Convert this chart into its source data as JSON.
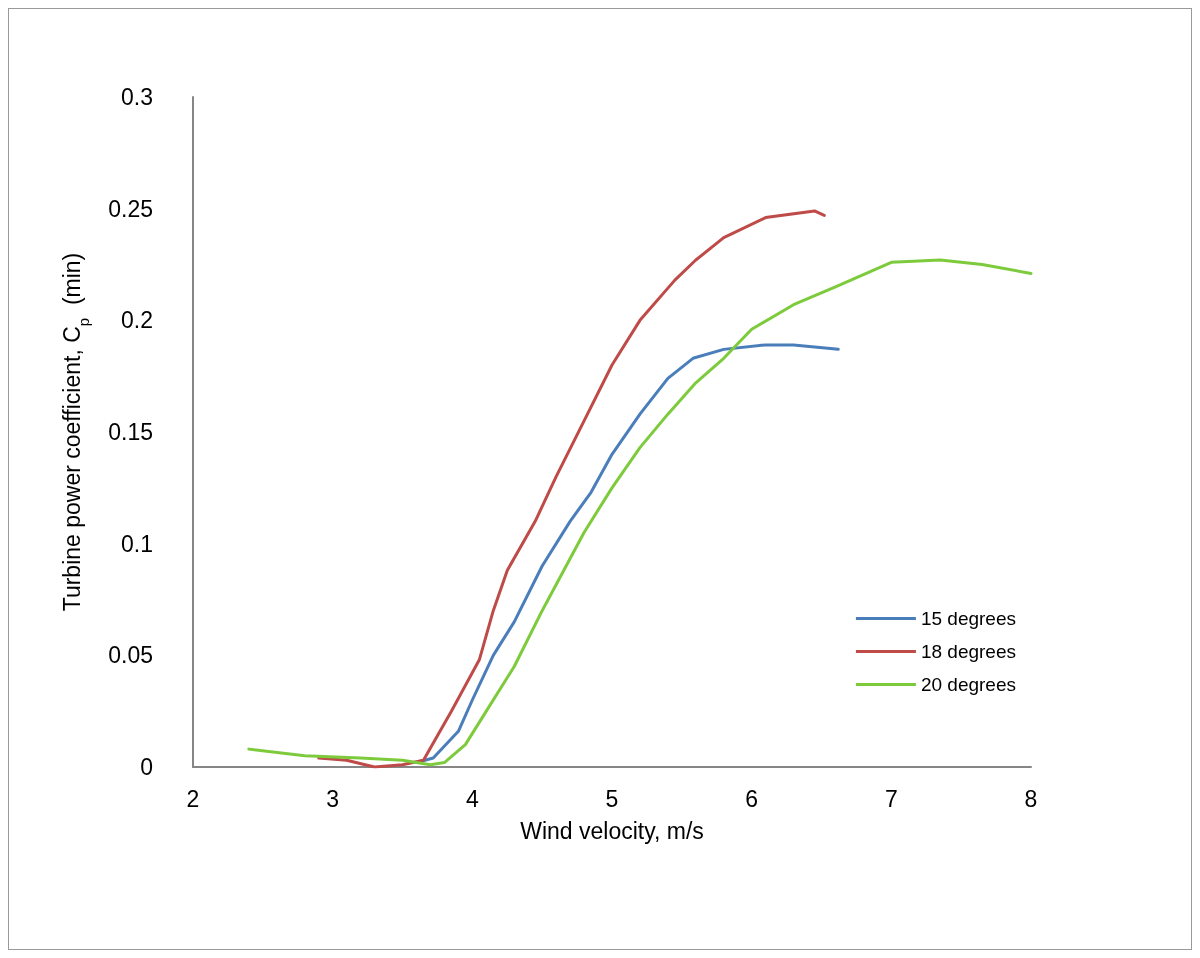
{
  "chart_data": {
    "type": "line",
    "xlabel": "Wind velocity, m/s",
    "ylabel": "Turbine power coefficient, C$_{p}$  (min)",
    "xlim": [
      2,
      8
    ],
    "xticks": [
      2,
      3,
      4,
      5,
      6,
      7,
      8
    ],
    "ylim": [
      0,
      0.3
    ],
    "yticks": [
      0,
      0.05,
      0.1,
      0.15,
      0.2,
      0.25,
      0.3
    ],
    "grid": false,
    "legend": "bottom right",
    "marker": "none",
    "line_style": "solid",
    "series": [
      {
        "name": "15 degrees",
        "color": "#4a7ebb",
        "x": [
          3.6,
          3.72,
          3.9,
          4.0,
          4.15,
          4.3,
          4.5,
          4.7,
          4.85,
          5.0,
          5.2,
          5.4,
          5.58,
          5.8,
          6.1,
          6.3,
          6.62
        ],
        "values": [
          0.002,
          0.004,
          0.016,
          0.03,
          0.05,
          0.065,
          0.09,
          0.11,
          0.123,
          0.14,
          0.158,
          0.174,
          0.183,
          0.187,
          0.189,
          0.189,
          0.187
        ]
      },
      {
        "name": "18 degrees",
        "color": "#be4b48",
        "x": [
          2.9,
          3.1,
          3.3,
          3.5,
          3.65,
          3.85,
          4.05,
          4.15,
          4.25,
          4.45,
          4.6,
          4.8,
          5.0,
          5.2,
          5.45,
          5.6,
          5.8,
          6.1,
          6.45,
          6.52
        ],
        "values": [
          0.004,
          0.003,
          0.0,
          0.001,
          0.003,
          0.025,
          0.048,
          0.07,
          0.088,
          0.11,
          0.13,
          0.155,
          0.18,
          0.2,
          0.218,
          0.227,
          0.237,
          0.246,
          0.249,
          0.247
        ]
      },
      {
        "name": "20 degrees",
        "color": "#7dcb3c",
        "x": [
          2.4,
          2.8,
          3.2,
          3.5,
          3.7,
          3.8,
          3.95,
          4.1,
          4.3,
          4.5,
          4.8,
          5.0,
          5.2,
          5.4,
          5.6,
          5.8,
          6.0,
          6.3,
          6.6,
          7.0,
          7.35,
          7.65,
          8.0
        ],
        "values": [
          0.008,
          0.005,
          0.004,
          0.003,
          0.001,
          0.002,
          0.01,
          0.025,
          0.045,
          0.07,
          0.105,
          0.125,
          0.143,
          0.158,
          0.172,
          0.183,
          0.196,
          0.207,
          0.215,
          0.226,
          0.227,
          0.225,
          0.221
        ]
      }
    ]
  }
}
